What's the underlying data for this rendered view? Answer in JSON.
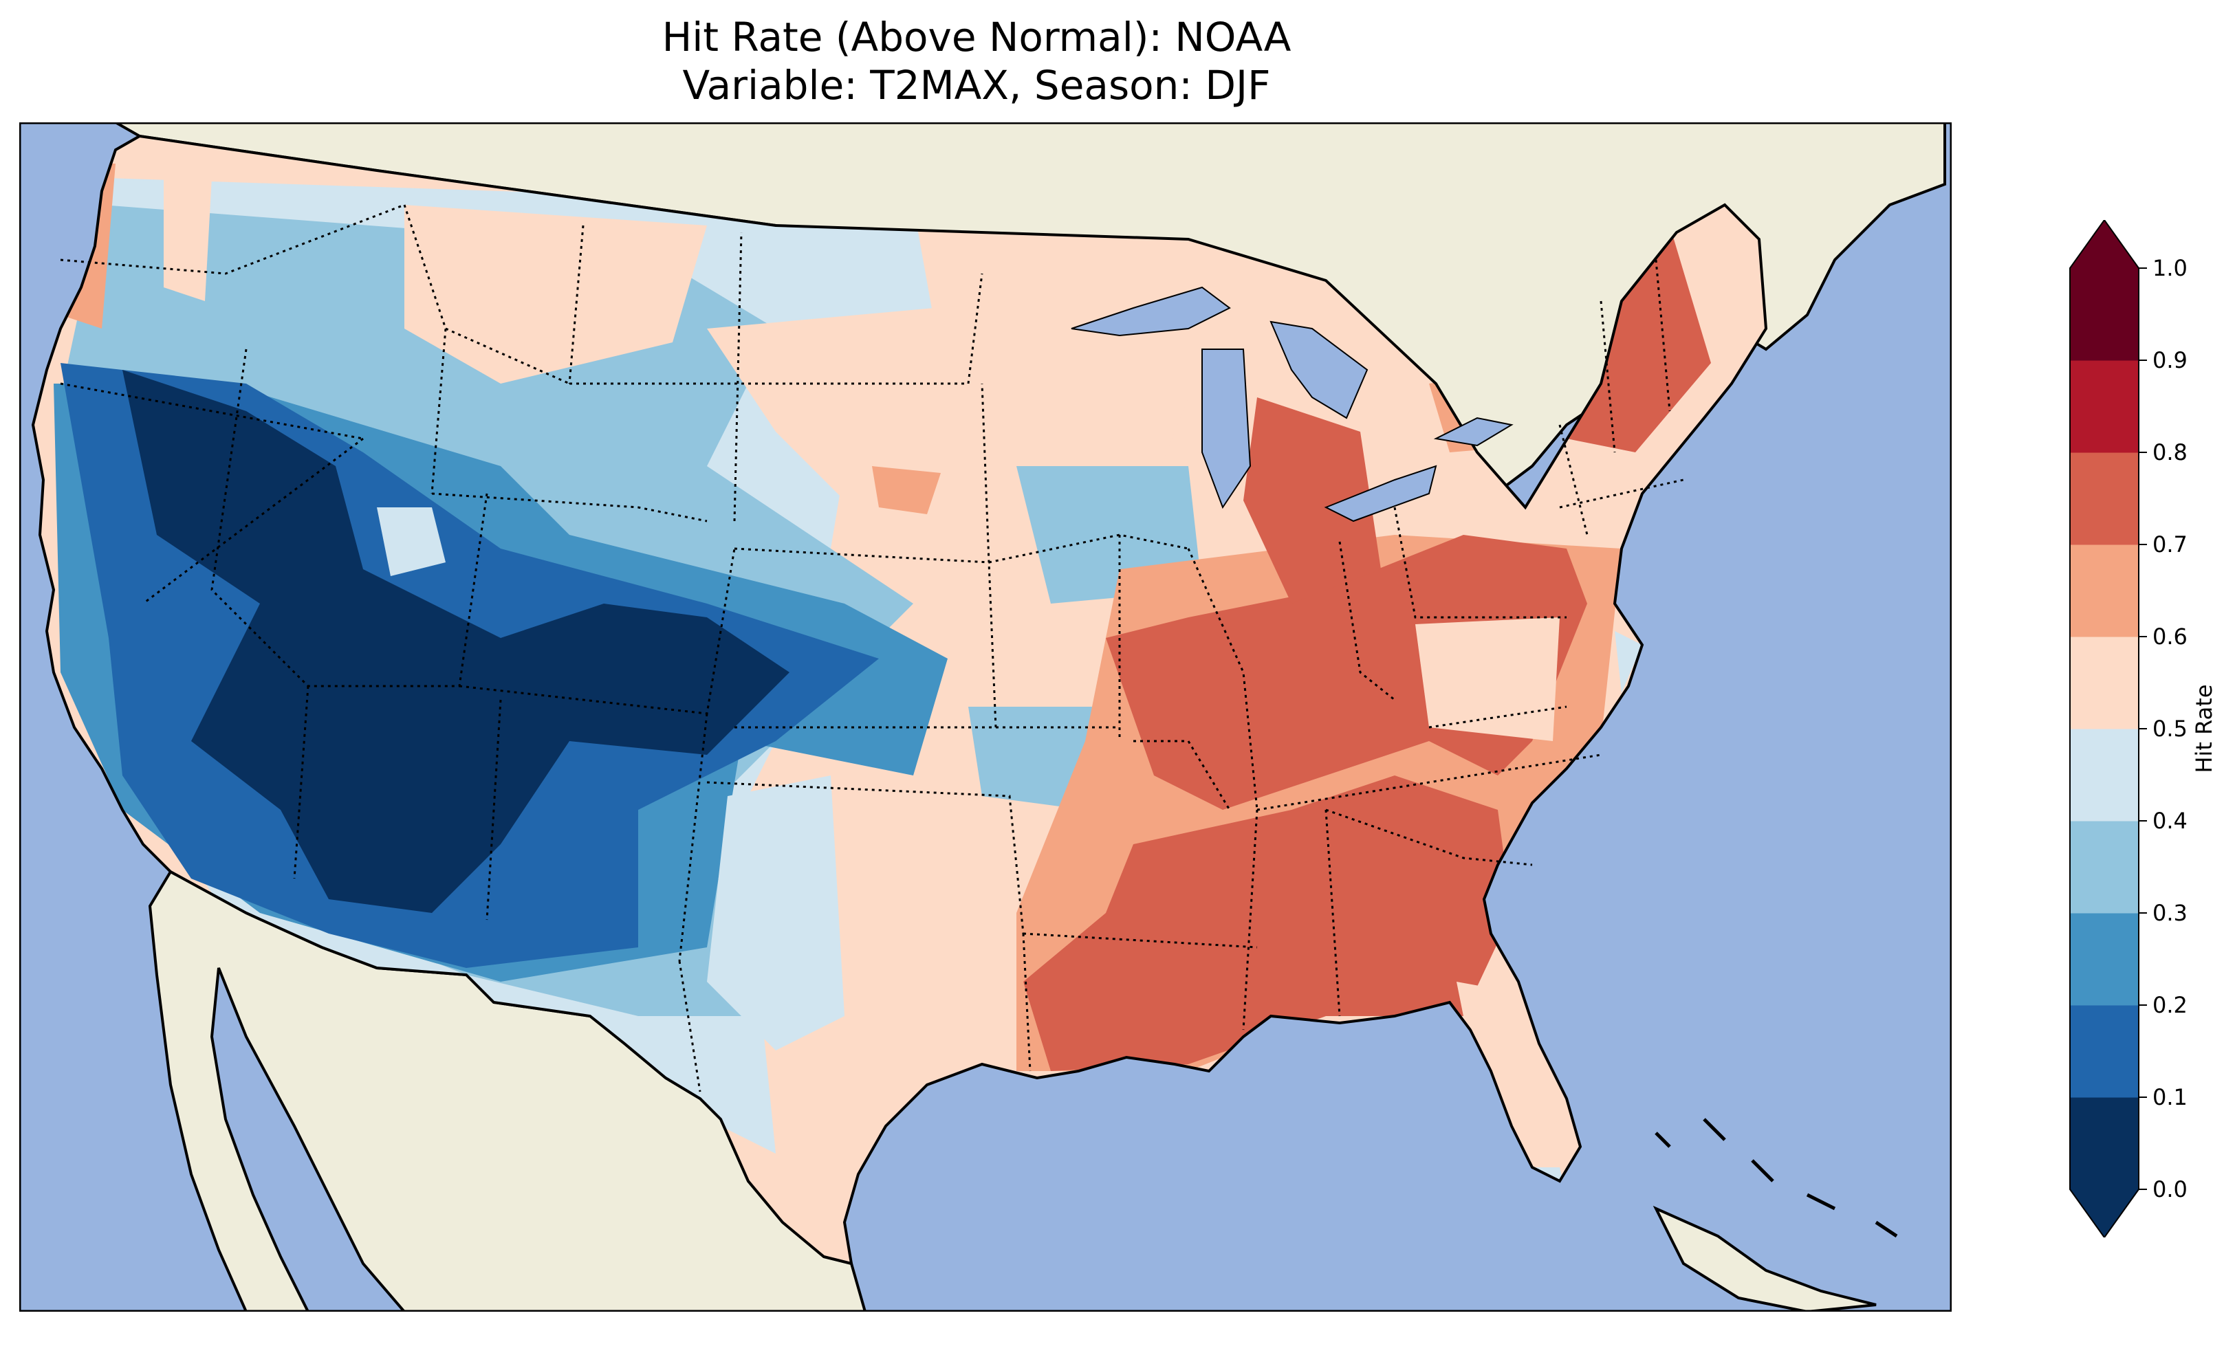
{
  "title": {
    "line1": "Hit Rate (Above Normal): NOAA",
    "line2": "Variable: T2MAX, Season: DJF"
  },
  "colors": {
    "ocean": "#98b4e0",
    "land": "#efeddb",
    "bins": [
      "#08305e",
      "#2166ac",
      "#4393c3",
      "#92c5de",
      "#d1e5f0",
      "#fddbc7",
      "#f4a582",
      "#d6604d",
      "#b2182b",
      "#67001f"
    ]
  },
  "colorbar": {
    "label": "Hit Rate",
    "ticks": [
      "0.0",
      "0.1",
      "0.2",
      "0.3",
      "0.4",
      "0.5",
      "0.6",
      "0.7",
      "0.8",
      "0.9",
      "1.0"
    ],
    "extend": "both",
    "range": [
      0.0,
      1.0
    ]
  },
  "chart_data": {
    "type": "heatmap",
    "title": "Hit Rate (Above Normal): NOAA",
    "subtitle": "Variable: T2MAX, Season: DJF",
    "region": "Contiguous United States",
    "value_label": "Hit Rate",
    "levels": [
      0.0,
      0.1,
      0.2,
      0.3,
      0.4,
      0.5,
      0.6,
      0.7,
      0.8,
      0.9,
      1.0
    ],
    "regional_pattern": [
      {
        "region": "Pacific Northwest coast",
        "value": 0.65
      },
      {
        "region": "Northern California / Oregon",
        "value": 0.2
      },
      {
        "region": "Nevada",
        "value": 0.1
      },
      {
        "region": "Utah",
        "value": 0.05
      },
      {
        "region": "Colorado",
        "value": 0.05
      },
      {
        "region": "Arizona",
        "value": 0.15
      },
      {
        "region": "New Mexico",
        "value": 0.2
      },
      {
        "region": "Montana",
        "value": 0.5
      },
      {
        "region": "Wyoming",
        "value": 0.3
      },
      {
        "region": "North Dakota",
        "value": 0.45
      },
      {
        "region": "Nebraska / Iowa",
        "value": 0.55
      },
      {
        "region": "Kansas",
        "value": 0.3
      },
      {
        "region": "Texas",
        "value": 0.55
      },
      {
        "region": "Great Lakes",
        "value": 0.7
      },
      {
        "region": "Ohio Valley",
        "value": 0.75
      },
      {
        "region": "Southeast",
        "value": 0.75
      },
      {
        "region": "Florida",
        "value": 0.55
      },
      {
        "region": "Northeast",
        "value": 0.75
      }
    ]
  }
}
